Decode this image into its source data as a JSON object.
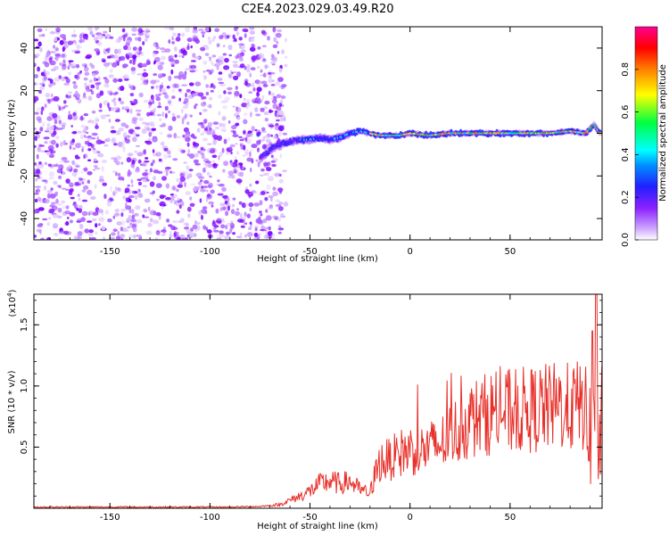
{
  "title": "C2E4.2023.029.03.49.R20",
  "chart_data": [
    {
      "type": "heatmap",
      "xlabel": "Height of straight line (km)",
      "ylabel": "Frequency (Hz)",
      "xlim": [
        -188,
        96
      ],
      "ylim": [
        -50,
        50
      ],
      "x_ticks": [
        -150,
        -100,
        -50,
        0,
        50
      ],
      "y_ticks": [
        -40,
        -20,
        0,
        20,
        40
      ],
      "colorbar": {
        "label": "Normalized spectral amplitude",
        "range": [
          0.0,
          1.0
        ],
        "ticks": [
          0.0,
          0.2,
          0.4,
          0.6,
          0.8
        ],
        "colors": [
          "#ffffff",
          "#9b30ff",
          "#2020ff",
          "#00ffff",
          "#00ff40",
          "#ffff00",
          "#ff8000",
          "#ff0000",
          "#ff0090"
        ]
      },
      "noise_region": {
        "x_from": -188,
        "x_to": -68,
        "freq_from": -50,
        "freq_to": 50
      },
      "signal_ridge": {
        "x": [
          -75,
          -70,
          -65,
          -60,
          -55,
          -50,
          -45,
          -40,
          -35,
          -30,
          -25,
          -20,
          -15,
          -10,
          -5,
          0,
          10,
          20,
          30,
          40,
          50,
          60,
          70,
          80,
          88,
          92,
          95
        ],
        "freq": [
          -12,
          -8,
          -5,
          -4,
          -3,
          -3,
          -2,
          -3,
          -2,
          0,
          1,
          0,
          -1,
          -1,
          -1,
          0,
          -1,
          0,
          0,
          0,
          0,
          0,
          0,
          1,
          0,
          4,
          0
        ]
      }
    },
    {
      "type": "line",
      "xlabel": "Height of straight line (km)",
      "ylabel": "SNR (10 * v/v)",
      "y_multiplier": "(x10",
      "y_multiplier_exp": "4",
      "y_multiplier_close": ")",
      "xlim": [
        -188,
        96
      ],
      "ylim": [
        0,
        1.75
      ],
      "x_ticks": [
        -150,
        -100,
        -50,
        0,
        50
      ],
      "y_ticks": [
        0.5,
        1.0,
        1.5
      ],
      "y_tick_labels": [
        "0.5",
        "1.0",
        "1.5"
      ],
      "color": "#e8302a",
      "series": [
        {
          "x": [
            -188,
            -170,
            -150,
            -130,
            -110,
            -90,
            -75,
            -65,
            -55,
            -50,
            -45,
            -40,
            -35,
            -30,
            -25,
            -20,
            -17,
            -15,
            -10,
            -5,
            0,
            5,
            10,
            15,
            20,
            25,
            30,
            35,
            40,
            45,
            50,
            55,
            60,
            65,
            70,
            75,
            80,
            85,
            88,
            90,
            92,
            93,
            94,
            95,
            96
          ],
          "values": [
            0.01,
            0.01,
            0.01,
            0.01,
            0.01,
            0.01,
            0.015,
            0.03,
            0.1,
            0.14,
            0.2,
            0.22,
            0.2,
            0.22,
            0.15,
            0.12,
            0.3,
            0.38,
            0.4,
            0.45,
            0.48,
            0.47,
            0.5,
            0.52,
            0.6,
            0.65,
            0.72,
            0.75,
            0.78,
            0.8,
            0.78,
            0.8,
            0.8,
            0.82,
            0.82,
            0.84,
            0.82,
            0.85,
            0.8,
            0.6,
            0.9,
            1.2,
            0.3,
            0.5,
            0.7
          ]
        }
      ]
    }
  ]
}
